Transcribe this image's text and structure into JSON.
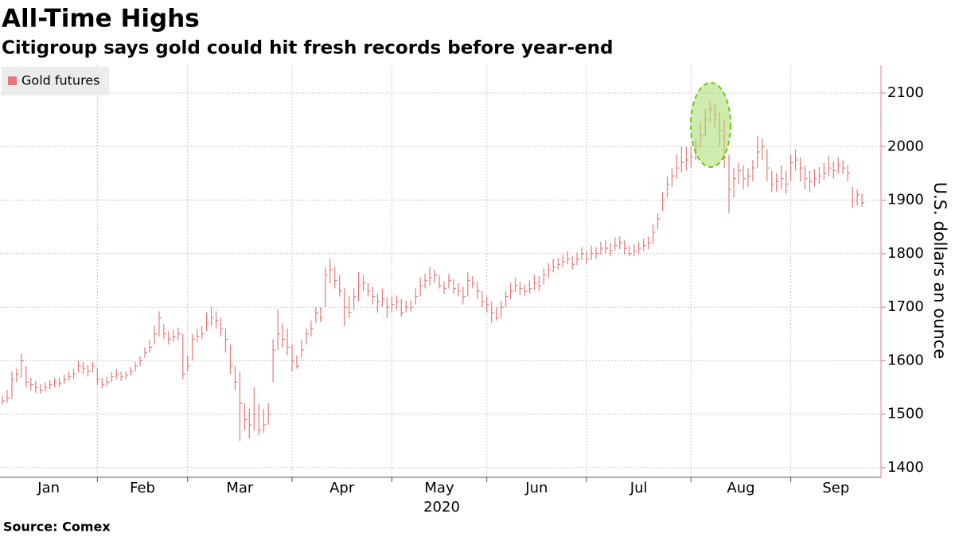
{
  "chart_data": {
    "type": "ohlc",
    "title": "All-Time Highs",
    "subtitle": "Citigroup says gold could hit fresh records before year-end",
    "source": "Source: Comex",
    "y_label": "U.S. dollars an ounce",
    "year_label": "2020",
    "categories": [
      "Jan",
      "Feb",
      "Mar",
      "Apr",
      "May",
      "Jun",
      "Jul",
      "Aug",
      "Sep"
    ],
    "xlim": [
      -0.5,
      185
    ],
    "xticks": [
      20,
      39,
      61,
      82,
      102,
      123,
      145,
      166
    ],
    "ylim": [
      1382,
      2152
    ],
    "yticks": [
      1400,
      1500,
      1600,
      1700,
      1800,
      1900,
      2000,
      2100
    ],
    "grid": true,
    "legend": "top-left",
    "series": [
      {
        "name": "Gold futures",
        "color": "#e87878",
        "high": [
          1535,
          1545,
          1580,
          1585,
          1613,
          1590,
          1568,
          1562,
          1556,
          1560,
          1564,
          1568,
          1568,
          1574,
          1580,
          1585,
          1600,
          1598,
          1592,
          1598,
          1585,
          1568,
          1570,
          1578,
          1584,
          1580,
          1580,
          1588,
          1598,
          1608,
          1625,
          1640,
          1665,
          1692,
          1668,
          1655,
          1658,
          1662,
          1650,
          1610,
          1650,
          1660,
          1665,
          1690,
          1700,
          1692,
          1680,
          1660,
          1630,
          1590,
          1580,
          1520,
          1510,
          1550,
          1520,
          1510,
          1520,
          1640,
          1695,
          1670,
          1660,
          1630,
          1610,
          1640,
          1660,
          1675,
          1700,
          1700,
          1775,
          1790,
          1775,
          1760,
          1735,
          1720,
          1735,
          1765,
          1760,
          1745,
          1738,
          1725,
          1735,
          1718,
          1720,
          1722,
          1715,
          1712,
          1712,
          1735,
          1755,
          1762,
          1775,
          1770,
          1760,
          1748,
          1762,
          1752,
          1745,
          1738,
          1765,
          1758,
          1748,
          1730,
          1720,
          1710,
          1700,
          1712,
          1730,
          1745,
          1755,
          1748,
          1742,
          1750,
          1760,
          1758,
          1772,
          1782,
          1790,
          1792,
          1798,
          1805,
          1795,
          1802,
          1812,
          1805,
          1815,
          1812,
          1822,
          1825,
          1820,
          1830,
          1832,
          1825,
          1815,
          1818,
          1822,
          1828,
          1832,
          1855,
          1875,
          1915,
          1945,
          1960,
          1985,
          2000,
          2000,
          2000,
          2015,
          2045,
          2070,
          2085,
          2080,
          2065,
          2050,
          1985,
          1960,
          1970,
          1965,
          1960,
          1975,
          2020,
          2015,
          1995,
          1955,
          1950,
          1965,
          1955,
          1985,
          1995,
          1980,
          1965,
          1955,
          1958,
          1962,
          1970,
          1982,
          1972,
          1980,
          1975,
          1965,
          1925,
          1920,
          1912
        ],
        "low": [
          1518,
          1522,
          1528,
          1560,
          1568,
          1550,
          1545,
          1540,
          1538,
          1542,
          1546,
          1550,
          1550,
          1556,
          1562,
          1566,
          1578,
          1575,
          1570,
          1578,
          1555,
          1548,
          1552,
          1560,
          1565,
          1562,
          1565,
          1572,
          1580,
          1590,
          1605,
          1615,
          1630,
          1645,
          1640,
          1630,
          1635,
          1638,
          1565,
          1580,
          1600,
          1635,
          1640,
          1655,
          1665,
          1660,
          1645,
          1615,
          1575,
          1545,
          1450,
          1470,
          1455,
          1470,
          1460,
          1465,
          1480,
          1560,
          1620,
          1625,
          1610,
          1580,
          1585,
          1605,
          1630,
          1645,
          1670,
          1672,
          1700,
          1745,
          1735,
          1720,
          1665,
          1680,
          1695,
          1710,
          1730,
          1720,
          1705,
          1690,
          1700,
          1680,
          1690,
          1695,
          1682,
          1690,
          1692,
          1705,
          1720,
          1735,
          1740,
          1745,
          1735,
          1725,
          1735,
          1725,
          1720,
          1705,
          1720,
          1735,
          1715,
          1700,
          1690,
          1670,
          1675,
          1680,
          1700,
          1715,
          1728,
          1722,
          1720,
          1725,
          1732,
          1730,
          1742,
          1755,
          1765,
          1770,
          1775,
          1780,
          1770,
          1778,
          1788,
          1780,
          1788,
          1790,
          1798,
          1800,
          1795,
          1805,
          1808,
          1798,
          1795,
          1795,
          1800,
          1805,
          1808,
          1818,
          1845,
          1880,
          1905,
          1925,
          1940,
          1952,
          1955,
          1960,
          1975,
          1998,
          2020,
          2045,
          2035,
          2000,
          1960,
          1875,
          1905,
          1930,
          1920,
          1925,
          1935,
          1960,
          1975,
          1935,
          1915,
          1915,
          1920,
          1912,
          1935,
          1955,
          1935,
          1920,
          1915,
          1925,
          1930,
          1938,
          1945,
          1940,
          1950,
          1948,
          1935,
          1885,
          1890,
          1888
        ],
        "close": [
          1525,
          1530,
          1565,
          1575,
          1600,
          1560,
          1555,
          1550,
          1545,
          1550,
          1555,
          1560,
          1558,
          1565,
          1570,
          1575,
          1590,
          1585,
          1580,
          1590,
          1565,
          1555,
          1560,
          1570,
          1575,
          1570,
          1572,
          1580,
          1590,
          1600,
          1615,
          1625,
          1650,
          1680,
          1650,
          1640,
          1645,
          1650,
          1575,
          1590,
          1640,
          1645,
          1650,
          1670,
          1680,
          1675,
          1660,
          1640,
          1590,
          1560,
          1520,
          1490,
          1480,
          1500,
          1470,
          1480,
          1500,
          1620,
          1650,
          1640,
          1625,
          1600,
          1590,
          1620,
          1650,
          1660,
          1690,
          1680,
          1760,
          1770,
          1750,
          1730,
          1700,
          1690,
          1720,
          1740,
          1745,
          1730,
          1720,
          1710,
          1715,
          1700,
          1705,
          1710,
          1690,
          1700,
          1700,
          1720,
          1740,
          1750,
          1755,
          1760,
          1740,
          1735,
          1750,
          1735,
          1730,
          1720,
          1750,
          1745,
          1730,
          1710,
          1705,
          1690,
          1680,
          1700,
          1720,
          1730,
          1740,
          1735,
          1730,
          1735,
          1745,
          1740,
          1760,
          1770,
          1775,
          1780,
          1785,
          1790,
          1780,
          1790,
          1800,
          1790,
          1800,
          1800,
          1810,
          1810,
          1805,
          1815,
          1820,
          1810,
          1800,
          1805,
          1810,
          1815,
          1820,
          1840,
          1865,
          1900,
          1930,
          1945,
          1960,
          1970,
          1975,
          1980,
          2000,
          2020,
          2050,
          2070,
          2060,
          2030,
          1980,
          1920,
          1940,
          1955,
          1940,
          1945,
          1960,
          1990,
          2000,
          1960,
          1930,
          1935,
          1940,
          1930,
          1970,
          1975,
          1960,
          1940,
          1935,
          1940,
          1945,
          1950,
          1960,
          1955,
          1965,
          1960,
          1950,
          1900,
          1910,
          1895
        ]
      }
    ]
  }
}
